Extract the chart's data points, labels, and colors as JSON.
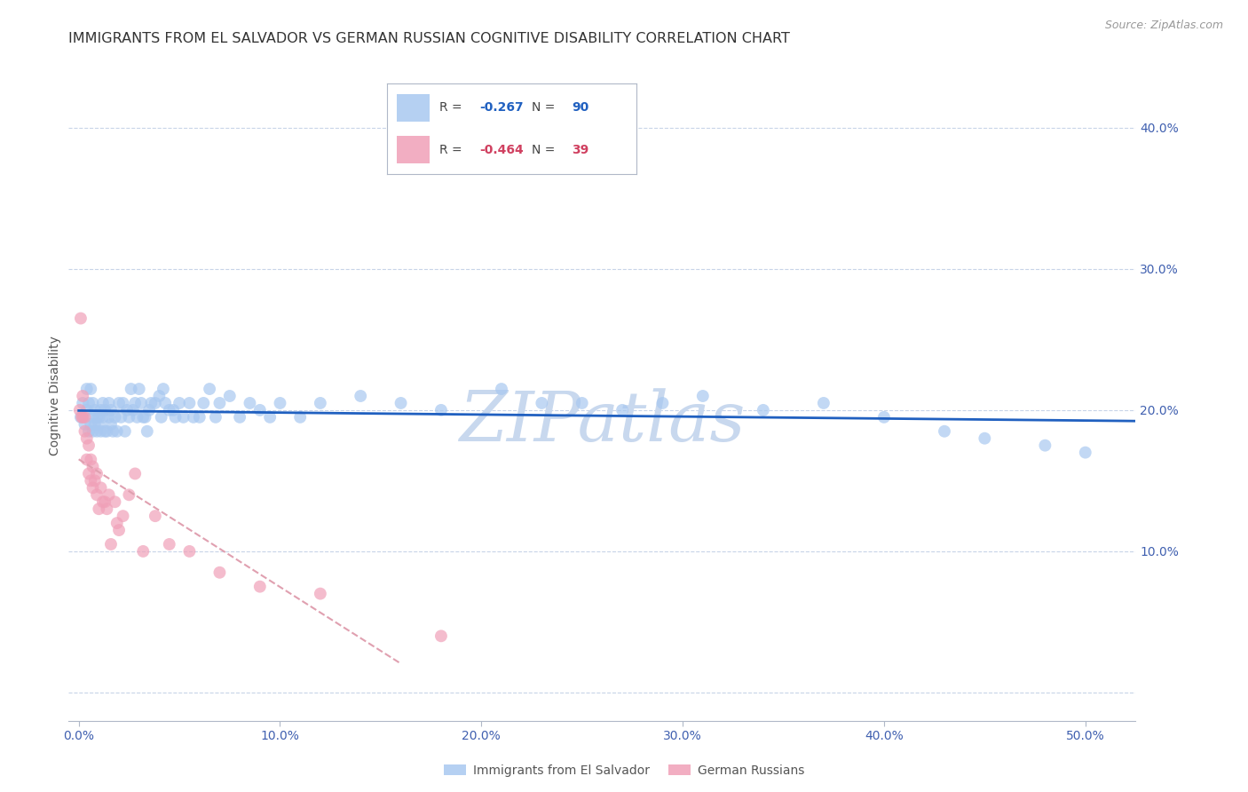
{
  "title": "IMMIGRANTS FROM EL SALVADOR VS GERMAN RUSSIAN COGNITIVE DISABILITY CORRELATION CHART",
  "source": "Source: ZipAtlas.com",
  "ylabel": "Cognitive Disability",
  "x_ticks": [
    0.0,
    0.1,
    0.2,
    0.3,
    0.4,
    0.5
  ],
  "x_tick_labels": [
    "0.0%",
    "10.0%",
    "20.0%",
    "30.0%",
    "40.0%",
    "50.0%"
  ],
  "y_ticks": [
    0.0,
    0.1,
    0.2,
    0.3,
    0.4
  ],
  "y_tick_labels": [
    "",
    "10.0%",
    "20.0%",
    "30.0%",
    "40.0%"
  ],
  "xlim": [
    -0.005,
    0.525
  ],
  "ylim": [
    -0.02,
    0.44
  ],
  "blue_color": "#a8c8f0",
  "pink_color": "#f0a0b8",
  "blue_line_color": "#2060c0",
  "pink_line_color": "#d04060",
  "pink_dash_color": "#e0a0b0",
  "watermark_color": "#c8d8ee",
  "R_blue": -0.267,
  "N_blue": 90,
  "R_pink": -0.464,
  "N_pink": 39,
  "legend_label_blue": "Immigrants from El Salvador",
  "legend_label_pink": "German Russians",
  "blue_scatter_x": [
    0.001,
    0.002,
    0.003,
    0.004,
    0.004,
    0.005,
    0.005,
    0.006,
    0.006,
    0.007,
    0.007,
    0.007,
    0.008,
    0.008,
    0.009,
    0.009,
    0.01,
    0.01,
    0.011,
    0.011,
    0.012,
    0.012,
    0.013,
    0.013,
    0.014,
    0.015,
    0.015,
    0.016,
    0.016,
    0.017,
    0.018,
    0.019,
    0.02,
    0.021,
    0.022,
    0.023,
    0.024,
    0.025,
    0.026,
    0.027,
    0.028,
    0.029,
    0.03,
    0.031,
    0.032,
    0.033,
    0.034,
    0.035,
    0.036,
    0.038,
    0.04,
    0.041,
    0.042,
    0.043,
    0.045,
    0.047,
    0.048,
    0.05,
    0.052,
    0.055,
    0.057,
    0.06,
    0.062,
    0.065,
    0.068,
    0.07,
    0.075,
    0.08,
    0.085,
    0.09,
    0.095,
    0.1,
    0.11,
    0.12,
    0.14,
    0.16,
    0.18,
    0.21,
    0.23,
    0.25,
    0.27,
    0.29,
    0.31,
    0.34,
    0.37,
    0.4,
    0.43,
    0.45,
    0.48,
    0.5
  ],
  "blue_scatter_y": [
    0.195,
    0.205,
    0.19,
    0.2,
    0.215,
    0.185,
    0.205,
    0.19,
    0.215,
    0.185,
    0.195,
    0.205,
    0.19,
    0.2,
    0.185,
    0.195,
    0.19,
    0.195,
    0.185,
    0.2,
    0.195,
    0.205,
    0.185,
    0.2,
    0.185,
    0.195,
    0.205,
    0.19,
    0.2,
    0.185,
    0.195,
    0.185,
    0.205,
    0.195,
    0.205,
    0.185,
    0.2,
    0.195,
    0.215,
    0.2,
    0.205,
    0.195,
    0.215,
    0.205,
    0.195,
    0.195,
    0.185,
    0.2,
    0.205,
    0.205,
    0.21,
    0.195,
    0.215,
    0.205,
    0.2,
    0.2,
    0.195,
    0.205,
    0.195,
    0.205,
    0.195,
    0.195,
    0.205,
    0.215,
    0.195,
    0.205,
    0.21,
    0.195,
    0.205,
    0.2,
    0.195,
    0.205,
    0.195,
    0.205,
    0.21,
    0.205,
    0.2,
    0.215,
    0.205,
    0.205,
    0.2,
    0.205,
    0.21,
    0.2,
    0.205,
    0.195,
    0.185,
    0.18,
    0.175,
    0.17
  ],
  "pink_scatter_x": [
    0.0005,
    0.001,
    0.0015,
    0.002,
    0.002,
    0.003,
    0.003,
    0.004,
    0.004,
    0.005,
    0.005,
    0.006,
    0.006,
    0.007,
    0.007,
    0.008,
    0.009,
    0.009,
    0.01,
    0.011,
    0.012,
    0.013,
    0.014,
    0.015,
    0.016,
    0.018,
    0.019,
    0.02,
    0.022,
    0.025,
    0.028,
    0.032,
    0.038,
    0.045,
    0.055,
    0.07,
    0.09,
    0.12,
    0.18
  ],
  "pink_scatter_y": [
    0.2,
    0.265,
    0.195,
    0.195,
    0.21,
    0.195,
    0.185,
    0.18,
    0.165,
    0.175,
    0.155,
    0.165,
    0.15,
    0.16,
    0.145,
    0.15,
    0.14,
    0.155,
    0.13,
    0.145,
    0.135,
    0.135,
    0.13,
    0.14,
    0.105,
    0.135,
    0.12,
    0.115,
    0.125,
    0.14,
    0.155,
    0.1,
    0.125,
    0.105,
    0.1,
    0.085,
    0.075,
    0.07,
    0.04
  ],
  "title_fontsize": 11.5,
  "axis_label_fontsize": 10,
  "tick_fontsize": 10,
  "source_fontsize": 9,
  "legend_fontsize": 10,
  "watermark_fontsize": 56,
  "scatter_size": 100,
  "scatter_alpha": 0.7,
  "background_color": "#ffffff",
  "grid_color": "#c8d4e8",
  "tick_color": "#4060b0",
  "axis_color": "#b0b8c8"
}
